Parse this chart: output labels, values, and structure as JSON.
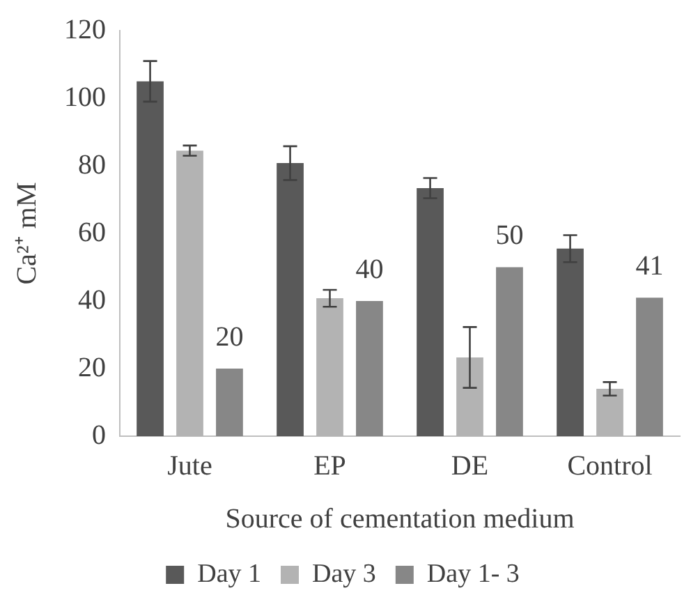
{
  "chart_data": {
    "type": "bar",
    "xlabel": "Source of cementation medium",
    "ylabel": "Ca²⁺ mM",
    "categories": [
      "Jute",
      "EP",
      "DE",
      "Control"
    ],
    "series": [
      {
        "name": "Day 1",
        "color": "#595959",
        "values": [
          105,
          80.8,
          73.4,
          55.5
        ],
        "errors": [
          6,
          5,
          3,
          4
        ]
      },
      {
        "name": "Day 3",
        "color": "#b3b3b3",
        "values": [
          84.5,
          40.8,
          23.3,
          14
        ],
        "errors": [
          1.5,
          2.5,
          9,
          2
        ]
      },
      {
        "name": "Day 1- 3",
        "color": "#878787",
        "values": [
          20,
          40,
          50,
          41
        ],
        "value_labels": [
          "20",
          "40",
          "50",
          "41"
        ]
      }
    ],
    "ylim": [
      0,
      120
    ],
    "yticks": [
      0,
      20,
      40,
      60,
      80,
      100,
      120
    ],
    "grid": false,
    "legend": "bottom"
  }
}
